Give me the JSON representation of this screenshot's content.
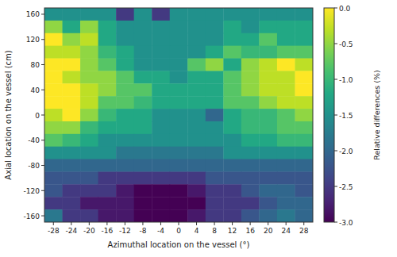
{
  "chart_data": {
    "type": "heatmap",
    "xlabel": "Azimuthal location on the vessel (°)",
    "ylabel": "Axial location on the vessel (cm)",
    "x": [
      -28,
      -24,
      -20,
      -16,
      -12,
      -8,
      -4,
      0,
      4,
      8,
      12,
      16,
      20,
      24,
      28
    ],
    "y": [
      160,
      140,
      120,
      100,
      80,
      60,
      40,
      20,
      0,
      -20,
      -40,
      -60,
      -80,
      -100,
      -120,
      -140,
      -160
    ],
    "xlim": [
      -30,
      30
    ],
    "ylim": [
      -170,
      170
    ],
    "xticks": [
      -28,
      -24,
      -20,
      -16,
      -12,
      -8,
      -4,
      0,
      4,
      8,
      12,
      16,
      20,
      24,
      28
    ],
    "yticks": [
      160,
      120,
      80,
      40,
      0,
      -40,
      -80,
      -120,
      -160
    ],
    "values": [
      [
        -1.5,
        -1.5,
        -1.5,
        -1.5,
        -2.5,
        -1.5,
        -2.5,
        -1.5,
        -1.5,
        -1.5,
        -1.5,
        -1.5,
        -1.5,
        -1.5,
        -1.5
      ],
      [
        -0.5,
        -1.2,
        -0.5,
        -1.2,
        -1.5,
        -1.5,
        -1.5,
        -1.5,
        -1.5,
        -1.5,
        -1.2,
        -1.5,
        -1.2,
        -1.2,
        -1.2
      ],
      [
        0.0,
        -0.5,
        -0.3,
        -1.2,
        -1.5,
        -1.5,
        -1.5,
        -1.5,
        -1.5,
        -1.5,
        -1.2,
        -1.2,
        -0.8,
        -1.2,
        -1.2
      ],
      [
        -0.3,
        -0.3,
        -0.5,
        -1.0,
        -1.2,
        -1.5,
        -1.5,
        -1.5,
        -1.5,
        -1.2,
        -0.8,
        -1.0,
        -1.0,
        -0.8,
        -0.8
      ],
      [
        0.0,
        0.0,
        -0.5,
        -0.8,
        -1.2,
        -1.5,
        -1.5,
        -1.5,
        -0.8,
        -0.5,
        -1.2,
        -0.5,
        -0.3,
        0.0,
        -0.3
      ],
      [
        0.0,
        -0.3,
        -0.5,
        -0.5,
        -0.8,
        -1.2,
        -1.2,
        -1.5,
        -1.2,
        -1.2,
        -0.8,
        -0.5,
        -0.3,
        -0.3,
        0.0
      ],
      [
        0.0,
        0.0,
        -0.3,
        -0.5,
        -0.8,
        -0.8,
        -1.2,
        -1.2,
        -1.2,
        -1.2,
        -0.8,
        -0.5,
        -0.3,
        -0.3,
        0.0
      ],
      [
        0.0,
        0.0,
        -0.3,
        -0.8,
        -0.8,
        -1.0,
        -1.2,
        -1.2,
        -1.2,
        -1.2,
        -0.8,
        -0.8,
        -0.5,
        -0.3,
        -0.3
      ],
      [
        -0.3,
        0.0,
        -0.5,
        -1.0,
        -1.2,
        -1.2,
        -1.5,
        -1.5,
        -1.5,
        -2.0,
        -1.2,
        -1.0,
        -1.0,
        -0.8,
        -0.5
      ],
      [
        -0.5,
        -0.5,
        -1.0,
        -1.2,
        -1.2,
        -1.2,
        -1.5,
        -1.5,
        -1.5,
        -1.5,
        -1.2,
        -1.0,
        -1.0,
        -0.8,
        -0.8
      ],
      [
        -0.8,
        -1.0,
        -1.2,
        -1.5,
        -1.5,
        -1.5,
        -1.5,
        -1.5,
        -1.5,
        -1.5,
        -1.5,
        -1.2,
        -1.2,
        -1.0,
        -1.0
      ],
      [
        -1.5,
        -1.5,
        -1.5,
        -1.5,
        -1.8,
        -1.8,
        -1.8,
        -1.8,
        -1.8,
        -1.8,
        -1.5,
        -1.5,
        -1.5,
        -1.5,
        -1.5
      ],
      [
        -2.0,
        -2.0,
        -2.0,
        -2.0,
        -2.0,
        -2.0,
        -2.0,
        -2.0,
        -2.0,
        -2.0,
        -2.0,
        -2.0,
        -2.0,
        -2.0,
        -2.0
      ],
      [
        -2.2,
        -2.2,
        -2.2,
        -2.5,
        -2.5,
        -2.5,
        -2.5,
        -2.5,
        -2.5,
        -2.2,
        -2.2,
        -2.2,
        -2.2,
        -2.2,
        -2.2
      ],
      [
        -2.2,
        -2.5,
        -2.5,
        -2.5,
        -2.8,
        -3.0,
        -3.0,
        -3.0,
        -2.8,
        -2.5,
        -2.5,
        -2.2,
        -2.0,
        -2.0,
        -2.2
      ],
      [
        -2.5,
        -2.5,
        -2.8,
        -2.8,
        -2.8,
        -3.0,
        -3.0,
        -3.0,
        -3.0,
        -2.5,
        -2.5,
        -2.5,
        -2.2,
        -2.0,
        -2.0
      ],
      [
        -1.8,
        -2.5,
        -2.5,
        -2.8,
        -2.8,
        -3.0,
        -3.0,
        -3.0,
        -2.8,
        -2.5,
        -2.5,
        -2.2,
        -2.0,
        -1.8,
        -2.0
      ]
    ],
    "colorbar_label": "Relative differences (%)",
    "colorbar_range": [
      -3.0,
      0.0
    ],
    "colorbar_ticks": [
      {
        "value": 0.0,
        "label": "0.0"
      },
      -0.5,
      {
        "value": -1.0,
        "label": "-1.0"
      },
      -1.5,
      {
        "value": -2.0,
        "label": "-2.0"
      },
      -2.5,
      {
        "value": -3.0,
        "label": "-3.0"
      }
    ]
  }
}
